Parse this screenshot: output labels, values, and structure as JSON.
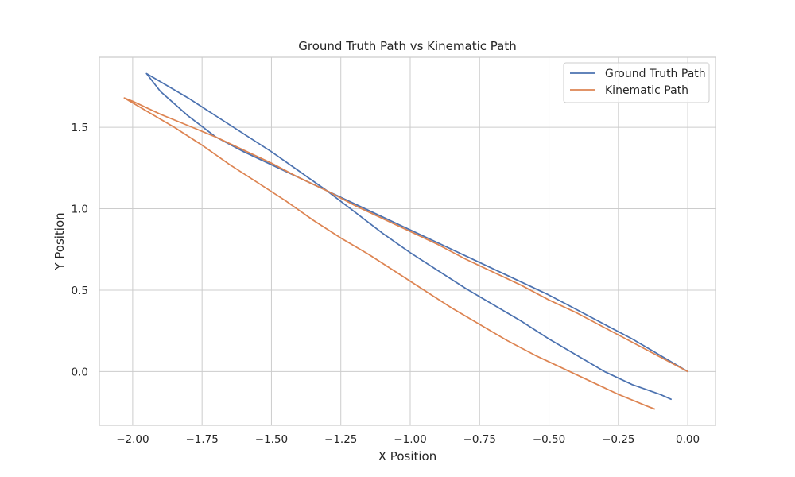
{
  "chart_data": {
    "type": "line",
    "title": "Ground Truth Path vs Kinematic Path",
    "xlabel": "X Position",
    "ylabel": "Y Position",
    "xlim": [
      -2.12,
      0.1
    ],
    "ylim": [
      -0.33,
      1.93
    ],
    "xticks": [
      -2.0,
      -1.75,
      -1.5,
      -1.25,
      -1.0,
      -0.75,
      -0.5,
      -0.25,
      0.0
    ],
    "xtick_labels": [
      "−2.00",
      "−1.75",
      "−1.50",
      "−1.25",
      "−1.00",
      "−0.75",
      "−0.50",
      "−0.25",
      "0.00"
    ],
    "yticks": [
      0.0,
      0.5,
      1.0,
      1.5
    ],
    "ytick_labels": [
      "0.0",
      "0.5",
      "1.0",
      "1.5"
    ],
    "grid": true,
    "legend_position": "top-right",
    "series": [
      {
        "name": "Ground Truth Path",
        "color": "#4c72b0",
        "x": [
          0.0,
          -0.1,
          -0.2,
          -0.3,
          -0.4,
          -0.5,
          -0.6,
          -0.7,
          -0.8,
          -0.9,
          -1.0,
          -1.1,
          -1.2,
          -1.3,
          -1.4,
          -1.5,
          -1.6,
          -1.7,
          -1.8,
          -1.9,
          -1.95,
          -1.9,
          -1.8,
          -1.7,
          -1.6,
          -1.5,
          -1.4,
          -1.3,
          -1.2,
          -1.1,
          -1.0,
          -0.9,
          -0.8,
          -0.7,
          -0.6,
          -0.5,
          -0.4,
          -0.3,
          -0.2,
          -0.1,
          -0.06
        ],
        "y": [
          0.0,
          0.1,
          0.2,
          0.29,
          0.38,
          0.47,
          0.55,
          0.63,
          0.71,
          0.79,
          0.87,
          0.95,
          1.03,
          1.11,
          1.19,
          1.27,
          1.35,
          1.44,
          1.57,
          1.72,
          1.83,
          1.78,
          1.68,
          1.57,
          1.46,
          1.35,
          1.23,
          1.11,
          0.98,
          0.85,
          0.73,
          0.62,
          0.51,
          0.41,
          0.31,
          0.2,
          0.1,
          0.0,
          -0.08,
          -0.14,
          -0.17
        ]
      },
      {
        "name": "Kinematic Path",
        "color": "#dd8452",
        "x": [
          0.0,
          -0.1,
          -0.2,
          -0.3,
          -0.4,
          -0.5,
          -0.6,
          -0.7,
          -0.8,
          -0.9,
          -1.0,
          -1.1,
          -1.2,
          -1.3,
          -1.4,
          -1.5,
          -1.6,
          -1.7,
          -1.8,
          -1.9,
          -2.0,
          -2.03,
          -1.95,
          -1.85,
          -1.75,
          -1.65,
          -1.55,
          -1.45,
          -1.35,
          -1.25,
          -1.15,
          -1.05,
          -0.95,
          -0.85,
          -0.75,
          -0.65,
          -0.55,
          -0.45,
          -0.35,
          -0.25,
          -0.15,
          -0.12
        ],
        "y": [
          0.0,
          0.09,
          0.18,
          0.27,
          0.36,
          0.44,
          0.53,
          0.61,
          0.69,
          0.78,
          0.86,
          0.94,
          1.02,
          1.11,
          1.19,
          1.28,
          1.36,
          1.44,
          1.51,
          1.58,
          1.66,
          1.68,
          1.6,
          1.5,
          1.39,
          1.27,
          1.16,
          1.05,
          0.93,
          0.82,
          0.72,
          0.61,
          0.5,
          0.39,
          0.29,
          0.19,
          0.1,
          0.02,
          -0.06,
          -0.14,
          -0.21,
          -0.23
        ]
      }
    ]
  }
}
